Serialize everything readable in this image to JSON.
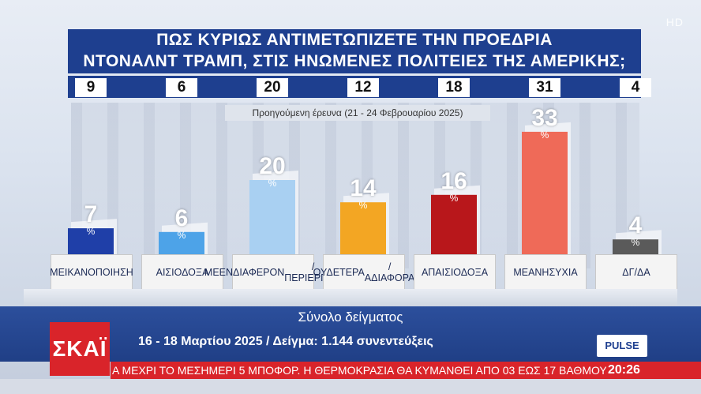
{
  "broadcast": {
    "hd_badge": "HD",
    "channel_logo": "ΣΚΑΪ",
    "pollster_logo": "PULSE",
    "ticker_text": "Α ΜΕΧΡΙ ΤΟ ΜΕΣΗΜΕΡΙ 5 ΜΠΟΦΟΡ. Η ΘΕΡΜΟΚΡΑΣΙΑ ΘΑ ΚΥΜΑΝΘΕΙ ΑΠΟ 03 ΕΩΣ 17 ΒΑΘΜΟΥΣ",
    "clock": "20:26"
  },
  "chart_data": {
    "type": "bar",
    "title_line1": "ΠΩΣ ΚΥΡΙΩΣ ΑΝΤΙΜΕΤΩΠΙΖΕΤΕ ΤΗΝ ΠΡΟΕΔΡΙΑ",
    "title_line2": "ΝΤΟΝΑΛΝΤ ΤΡΑΜΠ, ΣΤΙΣ ΗΝΩΜΕΝΕΣ ΠΟΛΙΤΕΙΕΣ ΤΗΣ ΑΜΕΡΙΚΗΣ;",
    "previous_survey_label": "Προηγούμενη έρευνα (21 - 24 Φεβρουαρίου 2025)",
    "unit": "%",
    "ylim": [
      0,
      35
    ],
    "categories": [
      [
        "ΜΕ",
        "ΙΚΑΝΟΠΟΙΗΣΗ"
      ],
      [
        "ΑΙΣΙΟΔΟΞΑ"
      ],
      [
        "ΜΕ",
        "ΕΝΔΙΑΦΕΡΟΝ",
        "/ΠΕΡΙΕΡΓΕΙΑ"
      ],
      [
        "ΟΥΔΕΤΕΡΑ",
        "/ΑΔΙΑΦΟΡΑ"
      ],
      [
        "ΑΠΑΙΣΙΟΔΟΞΑ"
      ],
      [
        "ΜΕ",
        "ΑΝΗΣΥΧΙΑ"
      ],
      [
        "ΔΓ/ΔΑ"
      ]
    ],
    "values": [
      7,
      6,
      20,
      14,
      16,
      33,
      4
    ],
    "previous_values": [
      9,
      6,
      20,
      12,
      18,
      31,
      4
    ],
    "colors": [
      "#1f3fa8",
      "#4da3e8",
      "#a9d0f2",
      "#f3a623",
      "#b8171b",
      "#ef6a58",
      "#5a5a5a"
    ],
    "sample_title": "Σύνολο δείγματος",
    "sample_details": "16 - 18 Μαρτίου 2025 / Δείγμα: 1.144 συνεντεύξεις"
  }
}
